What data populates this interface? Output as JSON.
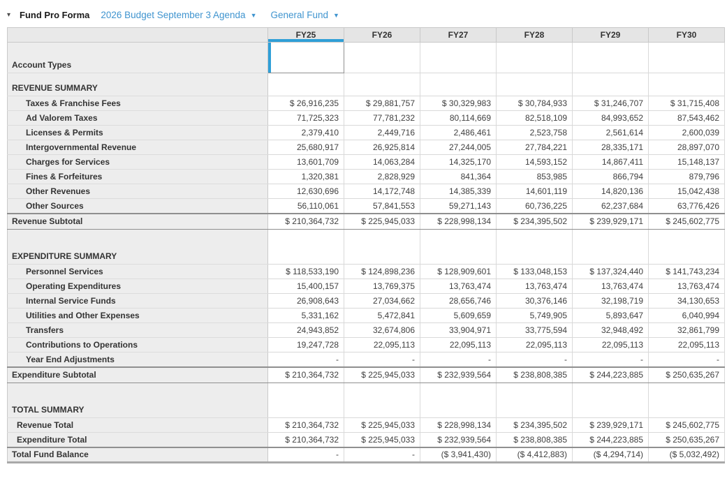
{
  "header": {
    "collapse_icon": "caret-down",
    "title": "Fund Pro Forma",
    "dropdowns": [
      {
        "label": "2026 Budget September 3 Agenda"
      },
      {
        "label": "General Fund"
      }
    ]
  },
  "colors": {
    "selection_blue": "#2f9fd7",
    "link_blue": "#3f94cf",
    "header_gray": "#e5e5e5",
    "label_column_gray": "#ededed",
    "heavy_border_gray": "#8f8f8f"
  },
  "table": {
    "columns": [
      "FY25",
      "FY26",
      "FY27",
      "FY28",
      "FY29",
      "FY30"
    ],
    "selected_column": "FY25",
    "selected_cell": {
      "row": "Account Types",
      "column": "FY25"
    },
    "rows": [
      {
        "type": "account",
        "label": "Account Types",
        "values": [
          "",
          "",
          "",
          "",
          "",
          ""
        ]
      },
      {
        "type": "section",
        "label": "REVENUE SUMMARY",
        "values": [
          "",
          "",
          "",
          "",
          "",
          ""
        ]
      },
      {
        "type": "item",
        "label": "Taxes & Franchise Fees",
        "values": [
          "$ 26,916,235",
          "$ 29,881,757",
          "$ 30,329,983",
          "$ 30,784,933",
          "$ 31,246,707",
          "$ 31,715,408"
        ]
      },
      {
        "type": "item",
        "label": "Ad Valorem Taxes",
        "values": [
          "71,725,323",
          "77,781,232",
          "80,114,669",
          "82,518,109",
          "84,993,652",
          "87,543,462"
        ]
      },
      {
        "type": "item",
        "label": "Licenses & Permits",
        "values": [
          "2,379,410",
          "2,449,716",
          "2,486,461",
          "2,523,758",
          "2,561,614",
          "2,600,039"
        ]
      },
      {
        "type": "item",
        "label": "Intergovernmental Revenue",
        "values": [
          "25,680,917",
          "26,925,814",
          "27,244,005",
          "27,784,221",
          "28,335,171",
          "28,897,070"
        ]
      },
      {
        "type": "item",
        "label": "Charges for Services",
        "values": [
          "13,601,709",
          "14,063,284",
          "14,325,170",
          "14,593,152",
          "14,867,411",
          "15,148,137"
        ]
      },
      {
        "type": "item",
        "label": "Fines & Forfeitures",
        "values": [
          "1,320,381",
          "2,828,929",
          "841,364",
          "853,985",
          "866,794",
          "879,796"
        ]
      },
      {
        "type": "item",
        "label": "Other Revenues",
        "values": [
          "12,630,696",
          "14,172,748",
          "14,385,339",
          "14,601,119",
          "14,820,136",
          "15,042,438"
        ]
      },
      {
        "type": "item",
        "label": "Other Sources",
        "values": [
          "56,110,061",
          "57,841,553",
          "59,271,143",
          "60,736,225",
          "62,237,684",
          "63,776,426"
        ]
      },
      {
        "type": "subtotal",
        "label": "Revenue Subtotal",
        "values": [
          "$ 210,364,732",
          "$ 225,945,033",
          "$ 228,998,134",
          "$ 234,395,502",
          "$ 239,929,171",
          "$ 245,602,775"
        ]
      },
      {
        "type": "section",
        "label": "EXPENDITURE SUMMARY",
        "values": [
          "",
          "",
          "",
          "",
          "",
          ""
        ]
      },
      {
        "type": "item",
        "label": "Personnel Services",
        "values": [
          "$ 118,533,190",
          "$ 124,898,236",
          "$ 128,909,601",
          "$ 133,048,153",
          "$ 137,324,440",
          "$ 141,743,234"
        ]
      },
      {
        "type": "item",
        "label": "Operating Expenditures",
        "values": [
          "15,400,157",
          "13,769,375",
          "13,763,474",
          "13,763,474",
          "13,763,474",
          "13,763,474"
        ]
      },
      {
        "type": "item",
        "label": "Internal Service Funds",
        "values": [
          "26,908,643",
          "27,034,662",
          "28,656,746",
          "30,376,146",
          "32,198,719",
          "34,130,653"
        ]
      },
      {
        "type": "item",
        "label": "Utilities and Other Expenses",
        "values": [
          "5,331,162",
          "5,472,841",
          "5,609,659",
          "5,749,905",
          "5,893,647",
          "6,040,994"
        ]
      },
      {
        "type": "item",
        "label": "Transfers",
        "values": [
          "24,943,852",
          "32,674,806",
          "33,904,971",
          "33,775,594",
          "32,948,492",
          "32,861,799"
        ]
      },
      {
        "type": "item",
        "label": "Contributions to Operations",
        "values": [
          "19,247,728",
          "22,095,113",
          "22,095,113",
          "22,095,113",
          "22,095,113",
          "22,095,113"
        ]
      },
      {
        "type": "item",
        "label": "Year End Adjustments",
        "values": [
          "-",
          "-",
          "-",
          "-",
          "-",
          "-"
        ]
      },
      {
        "type": "subtotal",
        "label": "Expenditure Subtotal",
        "values": [
          "$ 210,364,732",
          "$ 225,945,033",
          "$ 232,939,564",
          "$ 238,808,385",
          "$ 244,223,885",
          "$ 250,635,267"
        ]
      },
      {
        "type": "section",
        "label": "TOTAL SUMMARY",
        "values": [
          "",
          "",
          "",
          "",
          "",
          ""
        ]
      },
      {
        "type": "total",
        "label": "Revenue Total",
        "values": [
          "$ 210,364,732",
          "$ 225,945,033",
          "$ 228,998,134",
          "$ 234,395,502",
          "$ 239,929,171",
          "$ 245,602,775"
        ]
      },
      {
        "type": "total",
        "label": "Expenditure Total",
        "values": [
          "$ 210,364,732",
          "$ 225,945,033",
          "$ 232,939,564",
          "$ 238,808,385",
          "$ 244,223,885",
          "$ 250,635,267"
        ]
      },
      {
        "type": "grand",
        "label": "Total Fund Balance",
        "values": [
          "-",
          "-",
          "($ 3,941,430)",
          "($ 4,412,883)",
          "($ 4,294,714)",
          "($ 5,032,492)"
        ]
      }
    ]
  }
}
